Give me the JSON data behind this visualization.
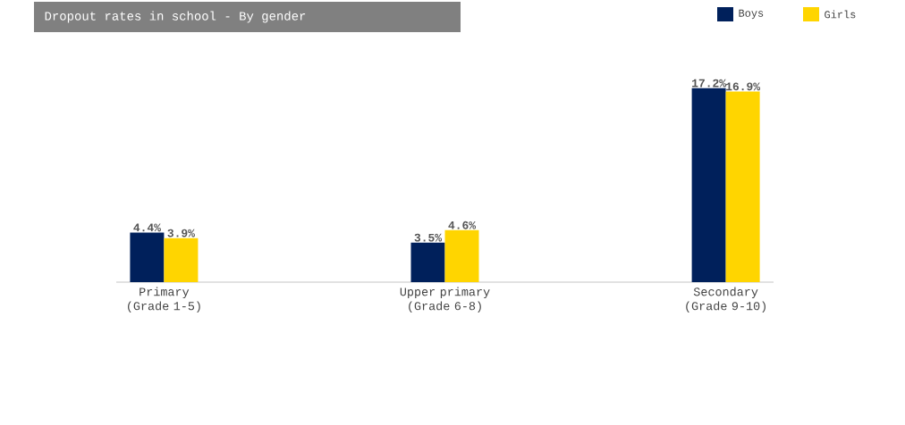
{
  "chart_data": {
    "type": "bar",
    "title": "Dropout rates in school - By gender",
    "categories": [
      "Primary (Grade 1-5)",
      "Upper primary (Grade 6-8)",
      "Secondary (Grade 9-10)"
    ],
    "series": [
      {
        "name": "Boys",
        "color": "#00205b",
        "values": [
          4.4,
          3.5,
          17.2
        ],
        "value_labels": [
          "4.4%",
          "3.5%",
          "17.2%"
        ]
      },
      {
        "name": "Girls",
        "color": "#ffd500",
        "values": [
          3.9,
          4.6,
          16.9
        ],
        "value_labels": [
          "3.9%",
          "4.6%",
          "16.9%"
        ]
      }
    ],
    "legend": "top right"
  }
}
